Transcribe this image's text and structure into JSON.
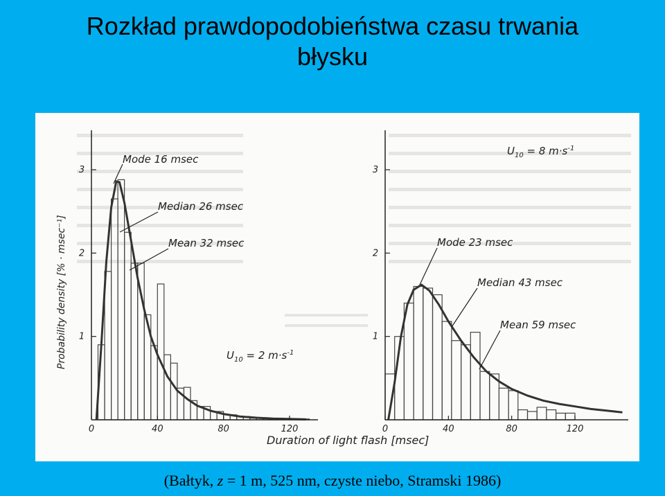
{
  "title": {
    "line1": "Rozkład prawdopodobieństwa czasu trwania",
    "line2": "błysku"
  },
  "caption": {
    "prefix": "(Bałtyk, ",
    "z": "z",
    "suffix": " = 1 m, 525 nm, czyste niebo, Stramski 1986)"
  },
  "colors": {
    "background": "#00AEEF",
    "ink": "#222222",
    "paper": "#fbfbf9"
  },
  "chart_data": [
    {
      "type": "bar",
      "panel": "left",
      "annotation_wind": "U10 = 2 m·s⁻¹",
      "annotation_wind_parts": {
        "U": "U",
        "sub": "10",
        "rest": " = 2 m·s",
        "sup": "-1"
      },
      "ylabel": "Probability density [% · msec⁻¹]",
      "xlabel": "",
      "xticks": [
        "0",
        "40",
        "80",
        "120"
      ],
      "yticks": [
        "1",
        "2",
        "3"
      ],
      "xlim": [
        0,
        135
      ],
      "ylim": [
        0,
        3.2
      ],
      "stats": [
        {
          "label": "Mode 16 msec"
        },
        {
          "label": "Median 26 msec"
        },
        {
          "label": "Mean 32 msec"
        }
      ],
      "histogram": {
        "bin_width": 4,
        "bin_starts": [
          4,
          8,
          12,
          16,
          20,
          24,
          28,
          32,
          36,
          40,
          44,
          48,
          52,
          56,
          60,
          64,
          68,
          72,
          76,
          80,
          84,
          88,
          92,
          96,
          100,
          104,
          108,
          112,
          116,
          120,
          124,
          128
        ],
        "values": [
          0.9,
          1.78,
          2.65,
          2.88,
          2.25,
          1.88,
          1.88,
          1.26,
          0.89,
          1.63,
          0.78,
          0.68,
          0.38,
          0.39,
          0.23,
          0.16,
          0.16,
          0.1,
          0.1,
          0.06,
          0.06,
          0.04,
          0.04,
          0.02,
          0.02,
          0.02,
          0.02,
          0.01,
          0.01,
          0.01,
          0.01,
          0.01
        ]
      },
      "fit_curve": {
        "x": [
          3,
          6,
          9,
          12,
          15,
          17,
          20,
          24,
          28,
          32,
          36,
          40,
          46,
          52,
          58,
          64,
          72,
          80,
          90,
          100,
          110,
          120,
          130
        ],
        "y": [
          0.0,
          0.9,
          1.9,
          2.55,
          2.86,
          2.85,
          2.6,
          2.15,
          1.7,
          1.32,
          1.0,
          0.78,
          0.52,
          0.35,
          0.25,
          0.17,
          0.11,
          0.07,
          0.04,
          0.025,
          0.015,
          0.01,
          0.005
        ]
      }
    },
    {
      "type": "bar",
      "panel": "right",
      "annotation_wind": "U10 = 8 m·s⁻¹",
      "annotation_wind_parts": {
        "U": "U",
        "sub": "10",
        "rest": " = 8 m·s",
        "sup": "-1"
      },
      "xlabel": "Duration of light flash [msec]",
      "xticks": [
        "0",
        "40",
        "80",
        "120"
      ],
      "yticks": [
        "1",
        "2",
        "3"
      ],
      "xlim": [
        0,
        155
      ],
      "ylim": [
        0,
        3.2
      ],
      "stats": [
        {
          "label": "Mode 23 msec"
        },
        {
          "label": "Median 43 msec"
        },
        {
          "label": "Mean 59 msec"
        }
      ],
      "histogram": {
        "bin_width": 6,
        "bin_starts": [
          0,
          6,
          12,
          18,
          24,
          30,
          36,
          42,
          48,
          54,
          60,
          66,
          72,
          78,
          84,
          90,
          96,
          102,
          108,
          114,
          120,
          126,
          132,
          138,
          144
        ],
        "values": [
          0.55,
          1.0,
          1.4,
          1.6,
          1.58,
          1.5,
          1.18,
          0.95,
          0.9,
          1.05,
          0.58,
          0.55,
          0.38,
          0.35,
          0.12,
          0.1,
          0.15,
          0.12,
          0.08,
          0.08,
          0.0,
          0.0,
          0.0,
          0.0,
          0.0
        ]
      },
      "fit_curve": {
        "x": [
          2,
          6,
          10,
          14,
          18,
          23,
          28,
          34,
          40,
          48,
          56,
          64,
          72,
          80,
          90,
          100,
          110,
          120,
          130,
          140,
          150
        ],
        "y": [
          0.0,
          0.45,
          1.0,
          1.38,
          1.56,
          1.62,
          1.55,
          1.38,
          1.18,
          0.95,
          0.75,
          0.58,
          0.46,
          0.37,
          0.29,
          0.23,
          0.19,
          0.16,
          0.13,
          0.11,
          0.09
        ]
      }
    }
  ]
}
